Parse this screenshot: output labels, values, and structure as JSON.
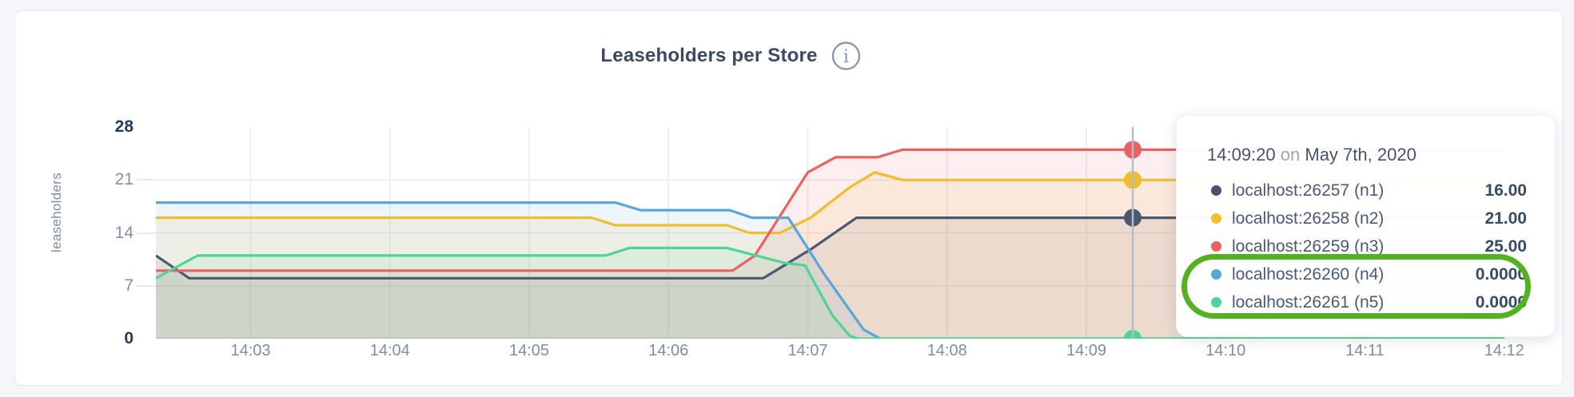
{
  "chart_data": {
    "type": "area",
    "title": "Leaseholders per Store",
    "ylabel": "leaseholders",
    "xlabel": "",
    "x_unit": "time of day (values are minutes after 14:00)",
    "ylim": [
      0,
      28
    ],
    "xlim_t": [
      2.32,
      12.3
    ],
    "grid": true,
    "legend_position": "tooltip-only",
    "x_ticks": [
      {
        "t": 3,
        "label": "14:03"
      },
      {
        "t": 4,
        "label": "14:04"
      },
      {
        "t": 5,
        "label": "14:05"
      },
      {
        "t": 6,
        "label": "14:06"
      },
      {
        "t": 7,
        "label": "14:07"
      },
      {
        "t": 8,
        "label": "14:08"
      },
      {
        "t": 9,
        "label": "14:09"
      },
      {
        "t": 10,
        "label": "14:10"
      },
      {
        "t": 11,
        "label": "14:11"
      },
      {
        "t": 12,
        "label": "14:12"
      }
    ],
    "y_ticks": [
      {
        "v": 0,
        "label": "0",
        "emphasis": true
      },
      {
        "v": 7,
        "label": "7",
        "emphasis": false
      },
      {
        "v": 14,
        "label": "14",
        "emphasis": false
      },
      {
        "v": 21,
        "label": "21",
        "emphasis": false
      },
      {
        "v": 28,
        "label": "28",
        "emphasis": true
      }
    ],
    "series": [
      {
        "name": "localhost:26257 (n1)",
        "color": "#4a5970",
        "hover_value": 16,
        "points": [
          [
            2.32,
            11
          ],
          [
            2.56,
            8
          ],
          [
            6.68,
            8
          ],
          [
            7.02,
            11.8
          ],
          [
            7.35,
            16
          ],
          [
            12,
            16
          ]
        ]
      },
      {
        "name": "localhost:26258 (n2)",
        "color": "#f2bd2b",
        "hover_value": 21,
        "points": [
          [
            2.32,
            16
          ],
          [
            5.45,
            16
          ],
          [
            5.62,
            15
          ],
          [
            6.42,
            15
          ],
          [
            6.58,
            14
          ],
          [
            6.8,
            14
          ],
          [
            7.02,
            16
          ],
          [
            7.3,
            20
          ],
          [
            7.48,
            22
          ],
          [
            7.68,
            21
          ],
          [
            12,
            21
          ]
        ]
      },
      {
        "name": "localhost:26259 (n3)",
        "color": "#ec6062",
        "hover_value": 25,
        "points": [
          [
            2.32,
            9
          ],
          [
            6.46,
            9
          ],
          [
            6.62,
            11
          ],
          [
            7.0,
            22
          ],
          [
            7.2,
            24
          ],
          [
            7.5,
            24
          ],
          [
            7.68,
            25
          ],
          [
            12,
            25
          ]
        ]
      },
      {
        "name": "localhost:26260 (n4)",
        "color": "#58a6da",
        "hover_value": 0,
        "points": [
          [
            2.32,
            18
          ],
          [
            5.62,
            18
          ],
          [
            5.8,
            17
          ],
          [
            6.44,
            17
          ],
          [
            6.6,
            16
          ],
          [
            6.86,
            16
          ],
          [
            7.12,
            8.5
          ],
          [
            7.4,
            1.2
          ],
          [
            7.52,
            0
          ],
          [
            12,
            0
          ]
        ]
      },
      {
        "name": "localhost:26261 (n5)",
        "color": "#4ed495",
        "hover_value": 0,
        "points": [
          [
            2.32,
            8
          ],
          [
            2.62,
            11
          ],
          [
            5.55,
            11
          ],
          [
            5.72,
            12
          ],
          [
            6.42,
            12
          ],
          [
            6.84,
            10
          ],
          [
            6.98,
            9.7
          ],
          [
            7.18,
            3
          ],
          [
            7.3,
            0.4
          ],
          [
            7.36,
            0
          ],
          [
            12,
            0
          ]
        ]
      }
    ],
    "hover": {
      "t": 9.333,
      "line_color": "#b6bcc6"
    }
  },
  "header": {
    "title": "Leaseholders per Store",
    "info_icon": "info-circle"
  },
  "axis": {
    "ylabel": "leaseholders"
  },
  "tooltip": {
    "time": "14:09:20",
    "on_word": "on",
    "date": "May 7th, 2020",
    "rows": [
      {
        "label": "localhost:26257 (n1)",
        "value": "16.00",
        "color": "#46546f",
        "highlighted": false
      },
      {
        "label": "localhost:26258 (n2)",
        "value": "21.00",
        "color": "#f2bd2b",
        "highlighted": false
      },
      {
        "label": "localhost:26259 (n3)",
        "value": "25.00",
        "color": "#ec6062",
        "highlighted": false
      },
      {
        "label": "localhost:26260 (n4)",
        "value": "0.0000",
        "color": "#58a6da",
        "highlighted": true
      },
      {
        "label": "localhost:26261 (n5)",
        "value": "0.0000",
        "color": "#4ed495",
        "highlighted": true
      }
    ]
  },
  "annotation": {
    "shape": "rounded-ring",
    "color": "#53b220",
    "highlights": "rows n4 and n5 with zero leaseholders"
  },
  "colors": {
    "page_bg": "#f4f6f9",
    "card_bg": "#ffffff",
    "grid": "#e7ecf2",
    "baseline": "#dde3ea",
    "tick_gray": "#8191a5",
    "tick_bold": "#223c5d",
    "title": "#3a4a64",
    "hover_line": "#b6bcc6"
  }
}
